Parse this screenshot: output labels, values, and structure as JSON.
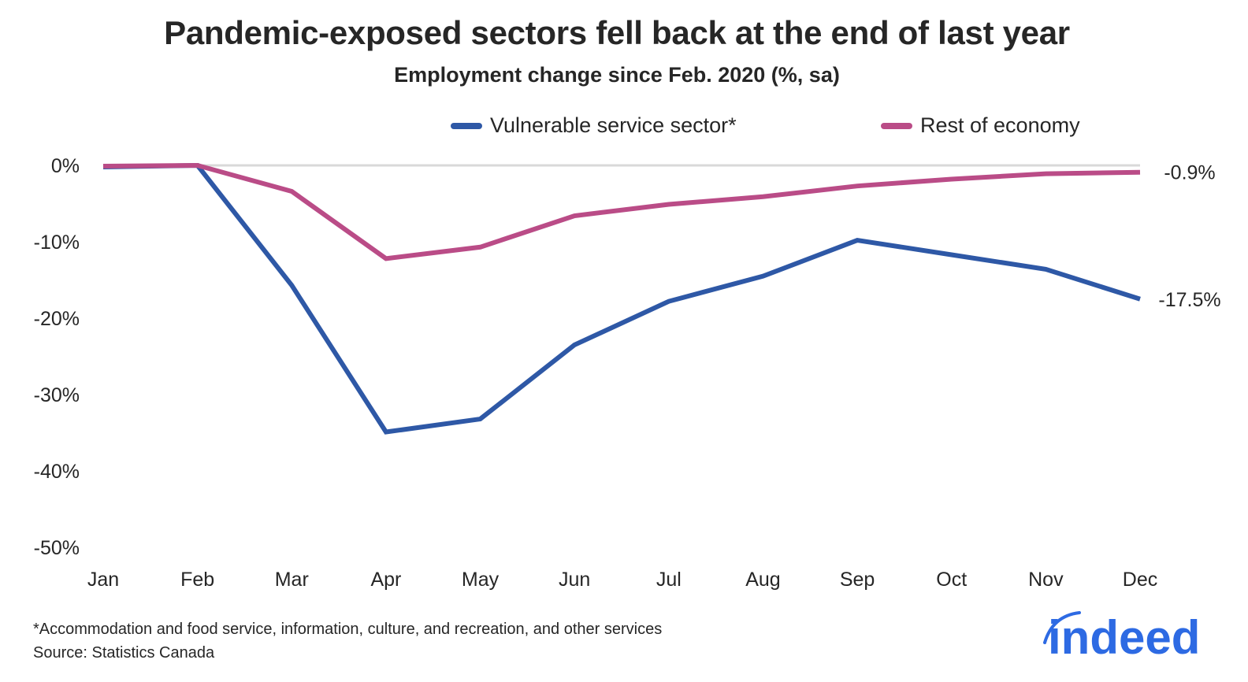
{
  "chart_data": {
    "type": "line",
    "title": "Pandemic-exposed sectors fell back at the end of last year",
    "subtitle": "Employment change since Feb. 2020 (%, sa)",
    "xlabel": "",
    "ylabel": "",
    "categories": [
      "Jan",
      "Feb",
      "Mar",
      "Apr",
      "May",
      "Jun",
      "Jul",
      "Aug",
      "Sep",
      "Oct",
      "Nov",
      "Dec"
    ],
    "ylim": [
      -50,
      0
    ],
    "yticks": [
      0,
      -10,
      -20,
      -30,
      -40,
      -50
    ],
    "ytick_labels": [
      "0%",
      "-10%",
      "-20%",
      "-30%",
      "-40%",
      "-50%"
    ],
    "grid": "zero-line only",
    "legend_position": "top-right",
    "series": [
      {
        "name": "Vulnerable service sector*",
        "color": "#2E58A6",
        "values": [
          -0.2,
          0,
          -15.7,
          -34.9,
          -33.2,
          -23.5,
          -17.8,
          -14.5,
          -9.8,
          -11.7,
          -13.6,
          -17.5
        ],
        "end_label": "-17.5%"
      },
      {
        "name": "Rest of economy",
        "color": "#BA4C87",
        "values": [
          -0.1,
          0,
          -3.4,
          -12.2,
          -10.7,
          -6.6,
          -5.1,
          -4.1,
          -2.7,
          -1.8,
          -1.1,
          -0.9
        ],
        "end_label": "-0.9%"
      }
    ]
  },
  "footnote": "*Accommodation and food service, information, culture, and recreation, and other services",
  "source": "Source: Statistics Canada",
  "logo": {
    "text": "indeed",
    "color": "#2D6AE3"
  }
}
